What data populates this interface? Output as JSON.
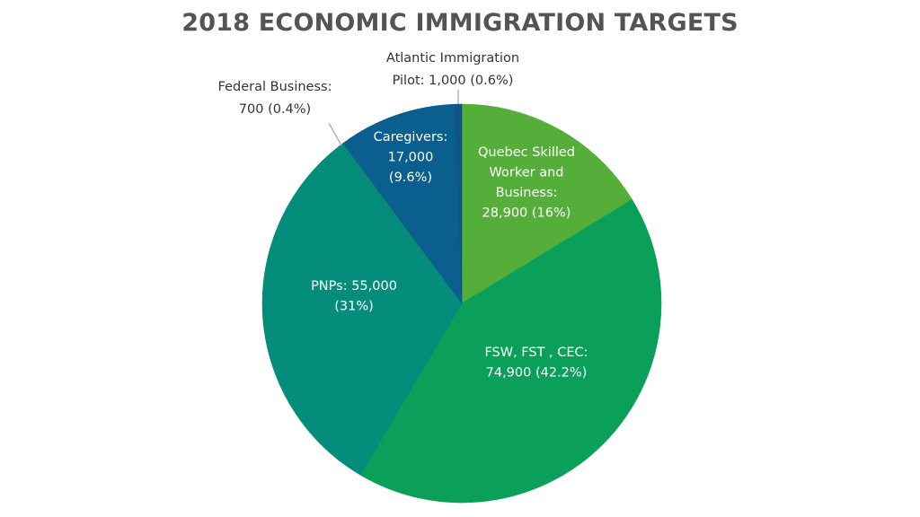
{
  "chart_data": {
    "type": "pie",
    "title": "2018 ECONOMIC IMMIGRATION TARGETS",
    "slices": [
      {
        "label_lines": [
          "Quebec Skilled",
          "Worker and",
          "Business:",
          "28,900 (16%)"
        ],
        "value": 28900,
        "percent": 16,
        "color": "#56ae3a"
      },
      {
        "label_lines": [
          "FSW, FST , CEC:",
          "74,900 (42.2%)"
        ],
        "value": 74900,
        "percent": 42.2,
        "color": "#0aa05a"
      },
      {
        "label_lines": [
          "PNPs: 55,000",
          "(31%)"
        ],
        "value": 55000,
        "percent": 31,
        "color": "#058d7b"
      },
      {
        "label_lines": [
          "Federal Business:",
          "700 (0.4%)"
        ],
        "value": 700,
        "percent": 0.4,
        "color": "#0a8878"
      },
      {
        "label_lines": [
          "Caregivers:",
          "17,000",
          "(9.6%)"
        ],
        "value": 17000,
        "percent": 9.6,
        "color": "#0a5f8e"
      },
      {
        "label_lines": [
          "Atlantic Immigration",
          "Pilot: 1,000 (0.6%)"
        ],
        "value": 1000,
        "percent": 0.6,
        "color": "#0e5485"
      }
    ]
  }
}
